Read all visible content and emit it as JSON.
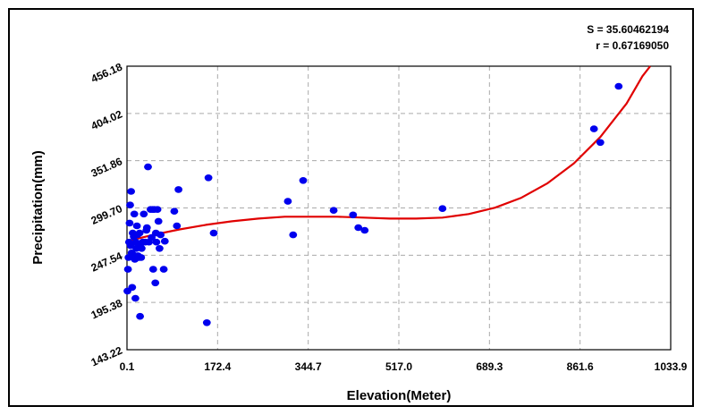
{
  "stats": {
    "s_label": "S = 35.60462194",
    "r_label": "r = 0.67169050"
  },
  "chart_data": {
    "type": "scatter",
    "xlabel": "Elevation(Meter)",
    "ylabel": "Precipitation(mm)",
    "xlim": [
      0.1,
      1033.9
    ],
    "ylim": [
      143.22,
      456.18
    ],
    "x_ticks": [
      "0.1",
      "172.4",
      "344.7",
      "517.0",
      "689.3",
      "861.6",
      "1033.9"
    ],
    "y_ticks": [
      "143.22",
      "195.38",
      "247.54",
      "299.70",
      "351.86",
      "404.02",
      "456.18"
    ],
    "grid": true,
    "series": [
      {
        "points": [
          [
            1,
            208
          ],
          [
            2,
            232
          ],
          [
            3,
            245
          ],
          [
            4,
            262
          ],
          [
            5,
            283
          ],
          [
            6,
            303
          ],
          [
            7,
            258
          ],
          [
            8,
            318
          ],
          [
            9,
            250
          ],
          [
            10,
            212
          ],
          [
            11,
            272
          ],
          [
            12,
            248
          ],
          [
            13,
            268
          ],
          [
            14,
            293
          ],
          [
            15,
            243
          ],
          [
            16,
            200
          ],
          [
            17,
            262
          ],
          [
            18,
            255
          ],
          [
            19,
            280
          ],
          [
            20,
            270
          ],
          [
            21,
            247
          ],
          [
            22,
            258
          ],
          [
            23,
            245
          ],
          [
            24,
            272
          ],
          [
            25,
            180
          ],
          [
            26,
            260
          ],
          [
            27,
            245
          ],
          [
            28,
            255
          ],
          [
            30,
            262
          ],
          [
            32,
            293
          ],
          [
            35,
            262
          ],
          [
            37,
            275
          ],
          [
            38,
            278
          ],
          [
            40,
            345
          ],
          [
            42,
            262
          ],
          [
            45,
            298
          ],
          [
            47,
            267
          ],
          [
            49,
            298
          ],
          [
            50,
            232
          ],
          [
            52,
            298
          ],
          [
            54,
            217
          ],
          [
            55,
            272
          ],
          [
            56,
            262
          ],
          [
            58,
            298
          ],
          [
            60,
            285
          ],
          [
            62,
            255
          ],
          [
            64,
            270
          ],
          [
            70,
            232
          ],
          [
            72,
            263
          ],
          [
            90,
            296
          ],
          [
            95,
            280
          ],
          [
            98,
            320
          ],
          [
            152,
            173
          ],
          [
            155,
            333
          ],
          [
            165,
            272
          ],
          [
            306,
            307
          ],
          [
            316,
            270
          ],
          [
            335,
            330
          ],
          [
            393,
            297
          ],
          [
            430,
            292
          ],
          [
            440,
            278
          ],
          [
            452,
            275
          ],
          [
            600,
            299
          ],
          [
            888,
            387
          ],
          [
            900,
            372
          ],
          [
            935,
            434
          ]
        ]
      }
    ],
    "fit_curve": {
      "color": "#e00000",
      "points": [
        [
          0.1,
          263
        ],
        [
          50,
          270
        ],
        [
          100,
          276
        ],
        [
          150,
          281
        ],
        [
          200,
          285
        ],
        [
          250,
          288
        ],
        [
          300,
          290
        ],
        [
          350,
          290
        ],
        [
          400,
          290
        ],
        [
          450,
          289
        ],
        [
          500,
          288
        ],
        [
          550,
          288
        ],
        [
          600,
          289
        ],
        [
          650,
          293
        ],
        [
          700,
          300
        ],
        [
          750,
          311
        ],
        [
          800,
          327
        ],
        [
          850,
          349
        ],
        [
          900,
          378
        ],
        [
          950,
          415
        ],
        [
          980,
          445
        ],
        [
          995,
          461
        ]
      ]
    },
    "point_color": "#0000ee",
    "grid_color": "#aaaaaa"
  }
}
